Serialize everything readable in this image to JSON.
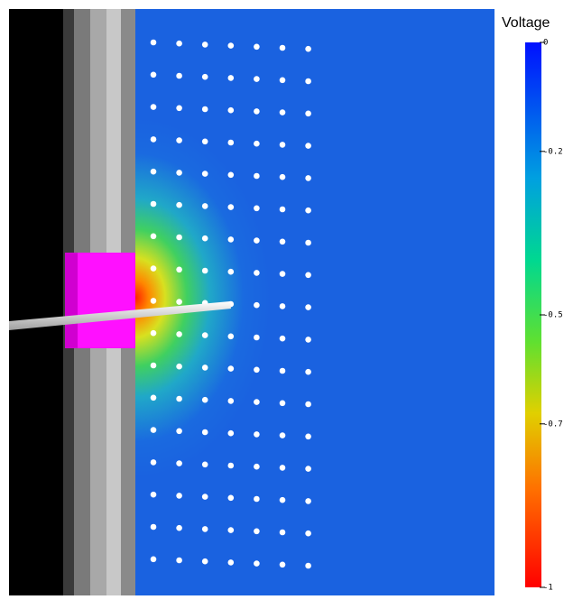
{
  "colorbar": {
    "title": "Voltage",
    "lim": [
      -1,
      0
    ],
    "ticks": [
      0,
      -0.2,
      -0.5,
      -0.7,
      -1
    ]
  }
}
